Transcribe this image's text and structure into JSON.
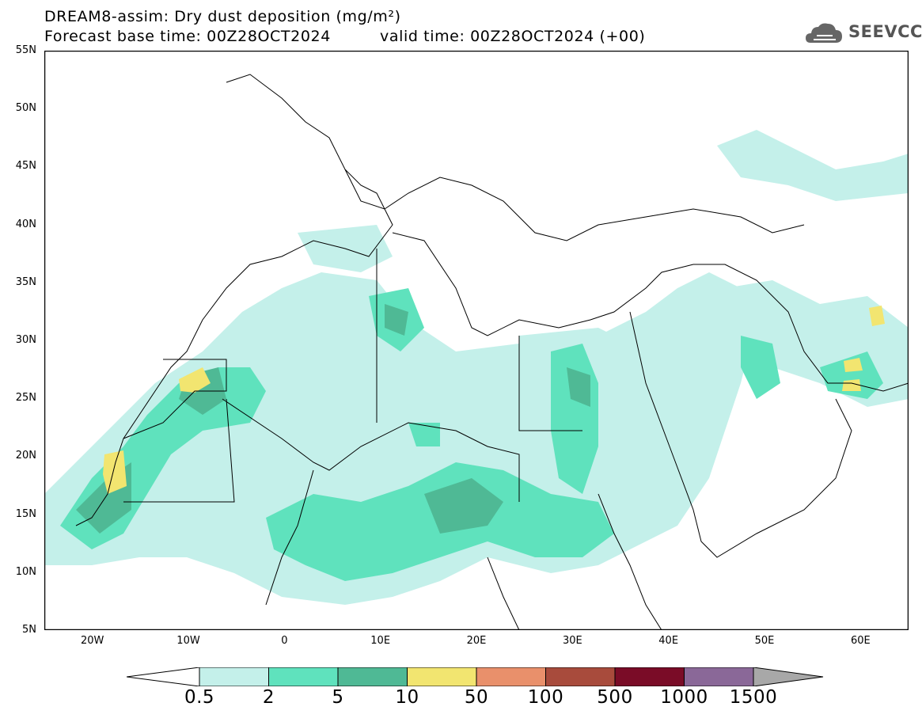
{
  "header": {
    "title_line1": "DREAM8-assim: Dry dust deposition (mg/m²)",
    "title_line2": "Forecast base time: 00Z28OCT2024",
    "title_line2_valid": "valid time: 00Z28OCT2024 (+00)",
    "logo_text": "SEEVCCC",
    "logo_icon": "cloud-icon"
  },
  "map": {
    "lat_labels": [
      "55N",
      "50N",
      "45N",
      "40N",
      "35N",
      "30N",
      "25N",
      "20N",
      "15N",
      "10N",
      "5N"
    ],
    "lon_labels": [
      "20W",
      "10W",
      "0",
      "10E",
      "20E",
      "30E",
      "40E",
      "50E",
      "60E"
    ],
    "extent": {
      "lon_min": -25,
      "lon_max": 65,
      "lat_min": 5,
      "lat_max": 55
    }
  },
  "legend": {
    "labels": [
      "0.5",
      "2",
      "5",
      "10",
      "50",
      "100",
      "500",
      "1000",
      "1500"
    ],
    "colors": [
      "#c4f0ea",
      "#5fe2bd",
      "#4fb995",
      "#f2e570",
      "#e9906b",
      "#a84b3c",
      "#7a0c27",
      "#8a6898",
      "#a8a8a8"
    ]
  }
}
